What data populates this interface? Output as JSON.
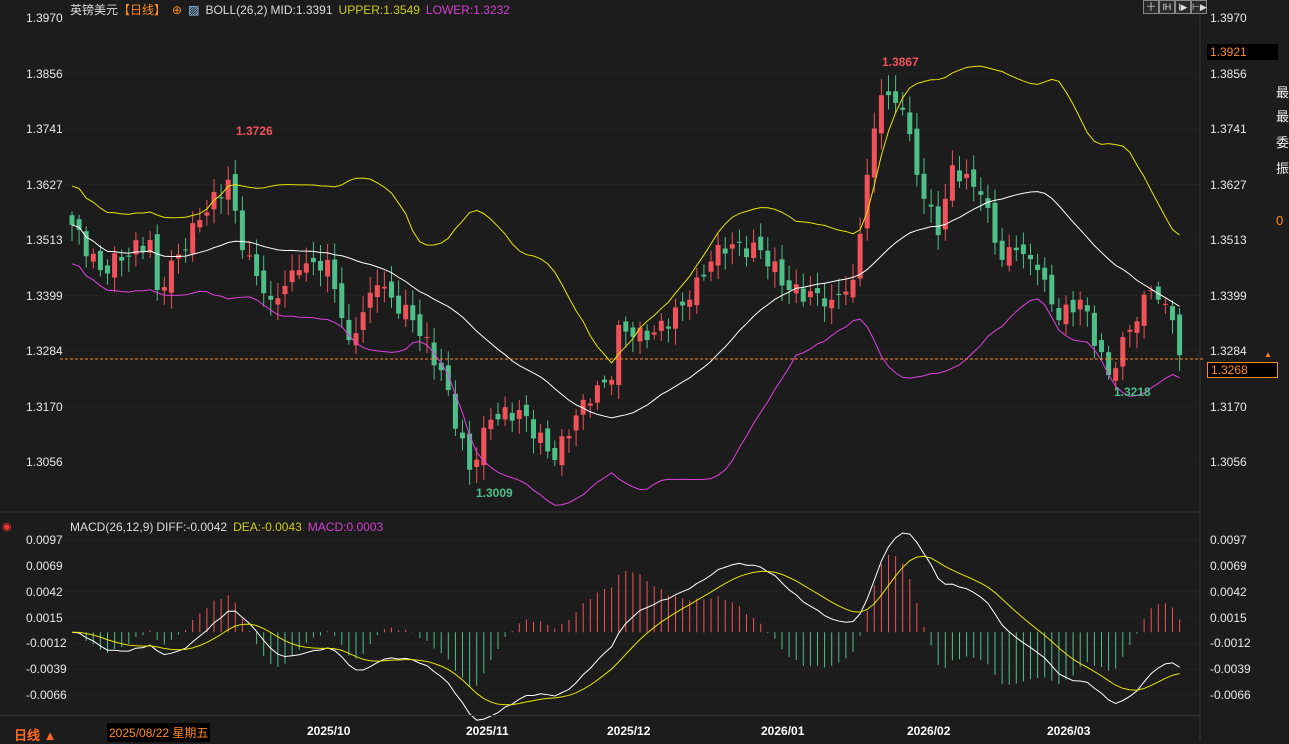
{
  "header": {
    "symbol": "英镑美元",
    "period": "【日线】",
    "indicator": "BOLL(26,2)",
    "mid": "MID:1.3391",
    "upper": "UPPER:1.3549",
    "lower": "LOWER:1.3232"
  },
  "macd_header": {
    "name": "MACD(26,12,9)",
    "diff": "DIFF:-0.0042",
    "dea": "DEA:-0.0043",
    "macd": "MACD:0.0003"
  },
  "toolbar": [
    "十",
    "lH",
    "l▶",
    "⊢▶"
  ],
  "price_axis": [
    "1.3970",
    "1.3856",
    "1.3741",
    "1.3627",
    "1.3513",
    "1.3399",
    "1.3284",
    "1.3170",
    "1.3056"
  ],
  "macd_axis": [
    "0.0097",
    "0.0069",
    "0.0042",
    "0.0015",
    "-0.0012",
    "-0.0039",
    "-0.0066"
  ],
  "price_tags": {
    "high_marker": "1.3921",
    "current": "1.3268"
  },
  "annotations": {
    "a": "1.3726",
    "b": "1.3867",
    "c": "1.3009",
    "d": "1.3218"
  },
  "bottom": {
    "period_button": "日线 ▲",
    "cursor_date": "2025/08/22 星期五",
    "dates": [
      "2025/10",
      "2025/11",
      "2025/12",
      "2026/01",
      "2026/02",
      "2026/03"
    ]
  },
  "side_panel": [
    "最",
    "最",
    "委",
    "振",
    "0"
  ],
  "colors": {
    "up": "#f0525a",
    "down": "#4fbf8a",
    "upper": "#e6e600",
    "lower": "#e040e0",
    "mid": "#ffffff",
    "accent": "#ff8a1f"
  },
  "chart_data": {
    "type": "candlestick",
    "symbol": "GBPUSD daily",
    "ylim": [
      1.2975,
      1.399
    ],
    "macd_ylim": [
      -0.009,
      0.0105
    ],
    "current_price": 1.3268,
    "close_keypoints": [
      [
        0,
        1.3544
      ],
      [
        4,
        1.3451
      ],
      [
        11,
        1.3513
      ],
      [
        12,
        1.341
      ],
      [
        18,
        1.3554
      ],
      [
        22,
        1.3637
      ],
      [
        24,
        1.3492
      ],
      [
        28,
        1.339
      ],
      [
        32,
        1.3451
      ],
      [
        36,
        1.3472
      ],
      [
        39,
        1.3307
      ],
      [
        43,
        1.342
      ],
      [
        48,
        1.3348
      ],
      [
        52,
        1.3245
      ],
      [
        56,
        1.304
      ],
      [
        59,
        1.3143
      ],
      [
        63,
        1.3163
      ],
      [
        68,
        1.306
      ],
      [
        72,
        1.3184
      ],
      [
        76,
        1.3225
      ],
      [
        77,
        1.3338
      ],
      [
        81,
        1.3307
      ],
      [
        87,
        1.339
      ],
      [
        91,
        1.3503
      ],
      [
        97,
        1.3492
      ],
      [
        101,
        1.341
      ],
      [
        107,
        1.339
      ],
      [
        110,
        1.3431
      ],
      [
        112,
        1.3647
      ],
      [
        114,
        1.3811
      ],
      [
        117,
        1.3781
      ],
      [
        119,
        1.3647
      ],
      [
        122,
        1.3523
      ],
      [
        124,
        1.3667
      ],
      [
        128,
        1.3606
      ],
      [
        131,
        1.3472
      ],
      [
        133,
        1.3492
      ],
      [
        136,
        1.3451
      ],
      [
        139,
        1.3348
      ],
      [
        142,
        1.339
      ],
      [
        146,
        1.3235
      ],
      [
        149,
        1.3328
      ],
      [
        152,
        1.341
      ],
      [
        155,
        1.3348
      ],
      [
        156,
        1.3276
      ]
    ]
  }
}
